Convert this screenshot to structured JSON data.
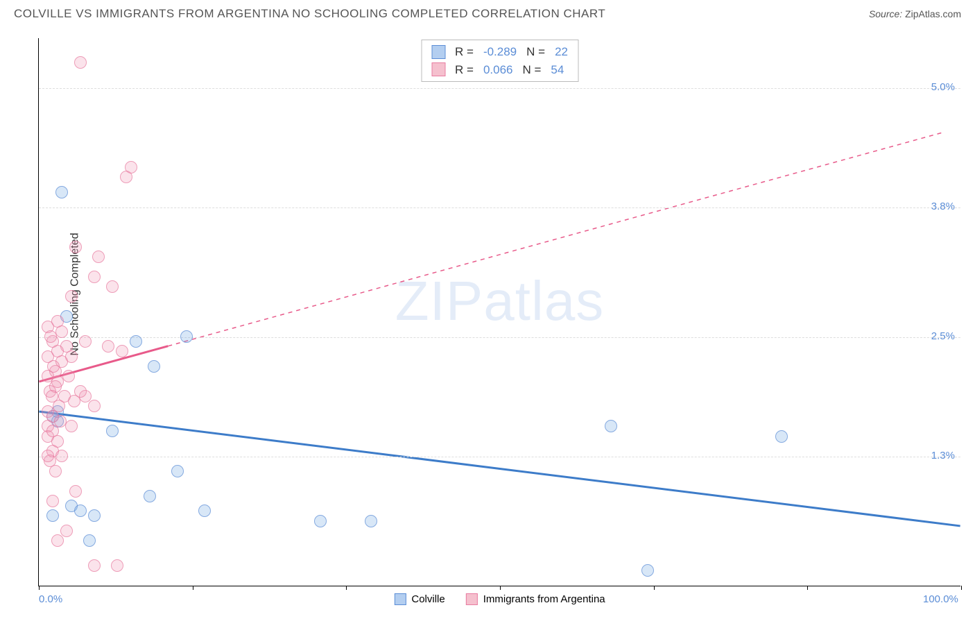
{
  "header": {
    "title": "COLVILLE VS IMMIGRANTS FROM ARGENTINA NO SCHOOLING COMPLETED CORRELATION CHART",
    "source_label": "Source:",
    "source_value": "ZipAtlas.com"
  },
  "chart": {
    "type": "scatter",
    "ylabel": "No Schooling Completed",
    "xlim": [
      0,
      100
    ],
    "ylim": [
      0,
      5.5
    ],
    "x_ticks": [
      0,
      16.67,
      33.33,
      50,
      66.67,
      83.33,
      100
    ],
    "x_tick_labels": {
      "first": "0.0%",
      "last": "100.0%"
    },
    "y_gridlines": [
      1.3,
      2.5,
      3.8,
      5.0
    ],
    "y_tick_labels": [
      "1.3%",
      "2.5%",
      "3.8%",
      "5.0%"
    ],
    "grid_color": "#dddddd",
    "background_color": "#ffffff",
    "watermark_zip": "ZIP",
    "watermark_atlas": "atlas",
    "series": [
      {
        "name": "Colville",
        "color_fill": "#b3cef0",
        "color_stroke": "#5b8dd6",
        "R": "-0.289",
        "N": "22",
        "trend": {
          "x1": 0,
          "y1": 1.75,
          "x2": 100,
          "y2": 0.6,
          "solid_until_x": 100,
          "dash": false
        },
        "points": [
          [
            2.5,
            3.95
          ],
          [
            3.0,
            2.7
          ],
          [
            10.5,
            2.45
          ],
          [
            16.0,
            2.5
          ],
          [
            12.5,
            2.2
          ],
          [
            2.0,
            1.65
          ],
          [
            8.0,
            1.55
          ],
          [
            62.0,
            1.6
          ],
          [
            80.5,
            1.5
          ],
          [
            15.0,
            1.15
          ],
          [
            12.0,
            0.9
          ],
          [
            18.0,
            0.75
          ],
          [
            36.0,
            0.65
          ],
          [
            30.5,
            0.65
          ],
          [
            3.5,
            0.8
          ],
          [
            4.5,
            0.75
          ],
          [
            6.0,
            0.7
          ],
          [
            1.5,
            0.7
          ],
          [
            5.5,
            0.45
          ],
          [
            66.0,
            0.15
          ],
          [
            1.5,
            1.7
          ],
          [
            2.0,
            1.75
          ]
        ]
      },
      {
        "name": "Immigrants from Argentina",
        "color_fill": "#f5c0ce",
        "color_stroke": "#e87ba0",
        "R": "0.066",
        "N": "54",
        "trend": {
          "x1": 0,
          "y1": 2.05,
          "x2": 98,
          "y2": 4.55,
          "solid_until_x": 14,
          "dash": true
        },
        "points": [
          [
            4.5,
            5.25
          ],
          [
            10.0,
            4.2
          ],
          [
            9.5,
            4.1
          ],
          [
            4.0,
            3.4
          ],
          [
            6.5,
            3.3
          ],
          [
            8.0,
            3.0
          ],
          [
            6.0,
            3.1
          ],
          [
            3.5,
            2.9
          ],
          [
            2.0,
            2.65
          ],
          [
            1.5,
            2.45
          ],
          [
            3.0,
            2.4
          ],
          [
            5.0,
            2.45
          ],
          [
            7.5,
            2.4
          ],
          [
            9.0,
            2.35
          ],
          [
            1.0,
            2.3
          ],
          [
            2.5,
            2.25
          ],
          [
            1.8,
            2.15
          ],
          [
            3.2,
            2.1
          ],
          [
            2.0,
            2.05
          ],
          [
            1.2,
            1.95
          ],
          [
            2.8,
            1.9
          ],
          [
            3.8,
            1.85
          ],
          [
            5.0,
            1.9
          ],
          [
            6.0,
            1.8
          ],
          [
            1.0,
            1.75
          ],
          [
            1.5,
            1.7
          ],
          [
            2.3,
            1.65
          ],
          [
            3.5,
            1.6
          ],
          [
            1.0,
            1.5
          ],
          [
            2.0,
            1.45
          ],
          [
            1.5,
            1.35
          ],
          [
            2.5,
            1.3
          ],
          [
            4.0,
            0.95
          ],
          [
            1.5,
            0.85
          ],
          [
            6.0,
            0.2
          ],
          [
            8.5,
            0.2
          ],
          [
            2.0,
            0.45
          ],
          [
            3.0,
            0.55
          ],
          [
            1.0,
            2.6
          ],
          [
            1.3,
            2.5
          ],
          [
            1.8,
            2.0
          ],
          [
            2.2,
            1.8
          ],
          [
            1.0,
            1.6
          ],
          [
            1.5,
            1.55
          ],
          [
            1.2,
            1.25
          ],
          [
            1.8,
            1.15
          ],
          [
            2.5,
            2.55
          ],
          [
            3.5,
            2.3
          ],
          [
            2.0,
            2.35
          ],
          [
            4.5,
            1.95
          ],
          [
            1.0,
            2.1
          ],
          [
            1.4,
            1.9
          ],
          [
            1.0,
            1.3
          ],
          [
            1.6,
            2.2
          ]
        ]
      }
    ],
    "legend_bottom": [
      {
        "label": "Colville",
        "swatch": "sw-blue"
      },
      {
        "label": "Immigrants from Argentina",
        "swatch": "sw-pink"
      }
    ]
  }
}
